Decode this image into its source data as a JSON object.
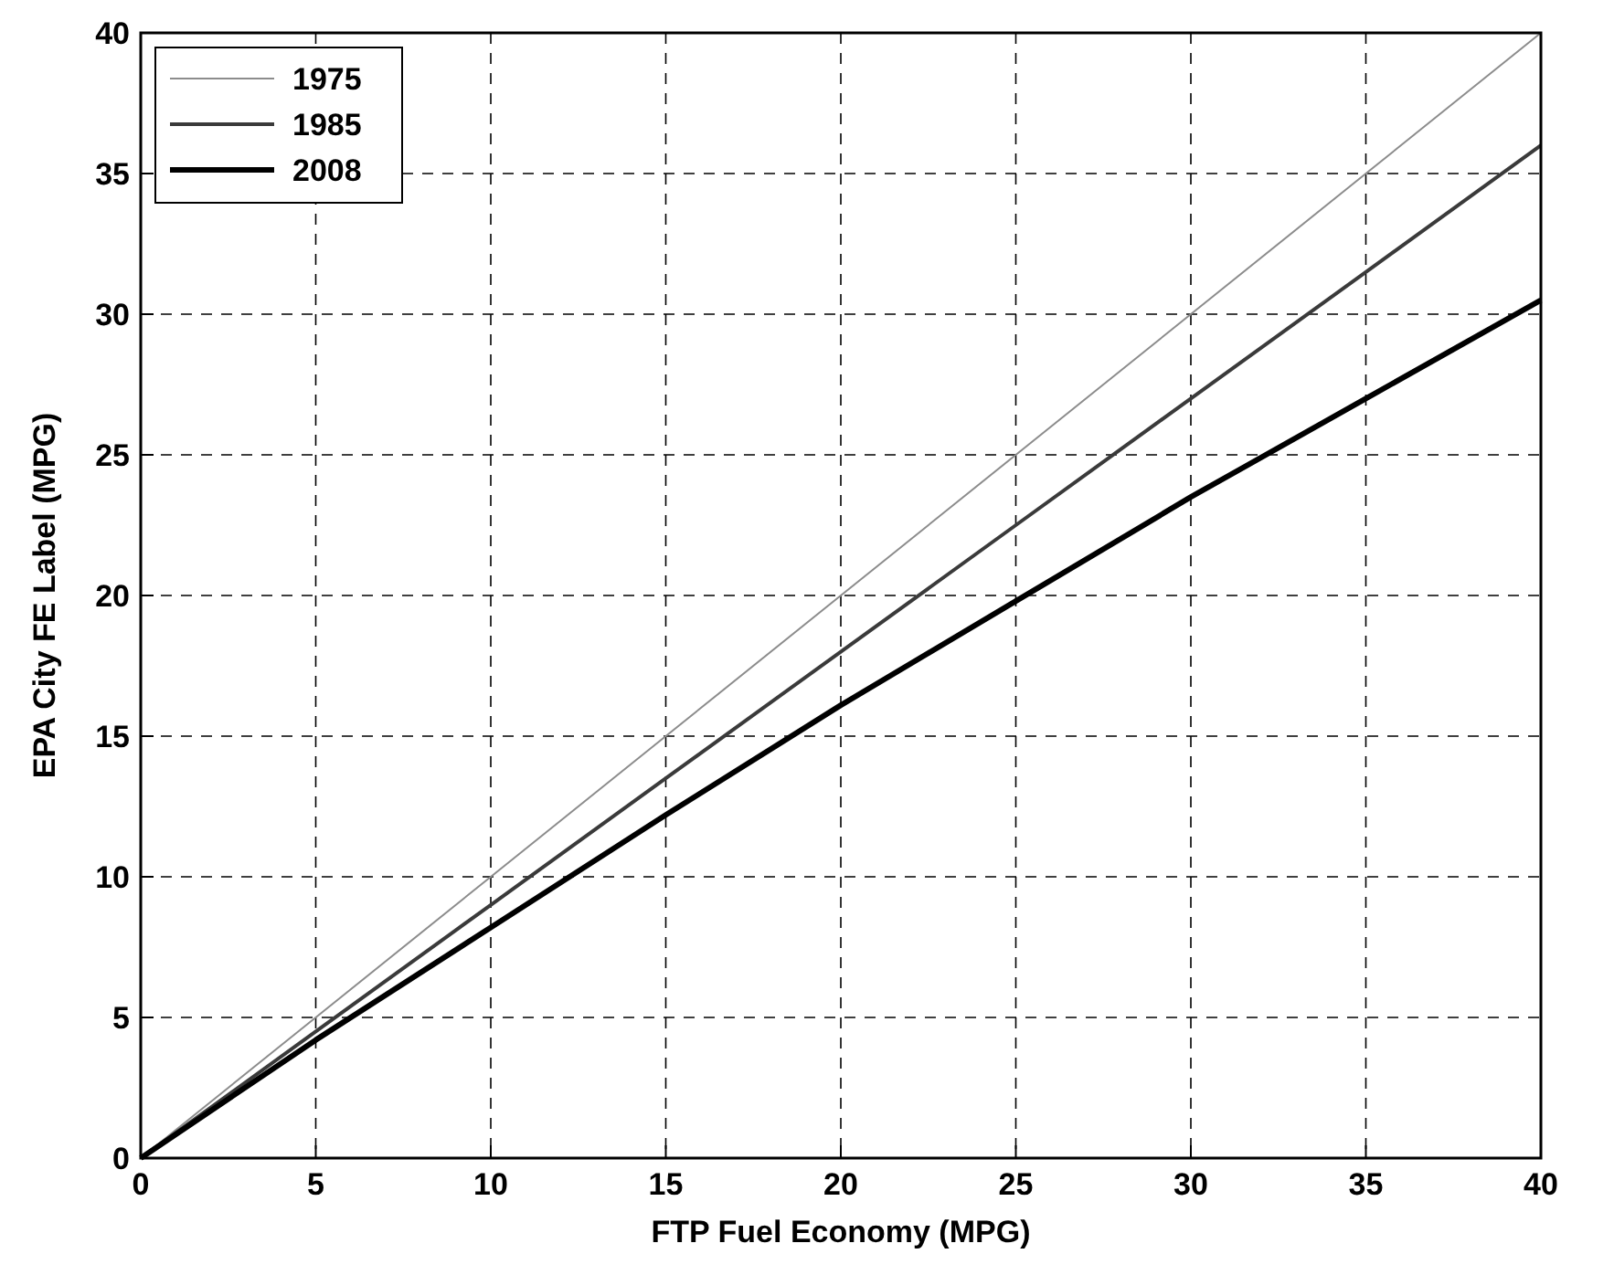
{
  "chart_data": {
    "type": "line",
    "xlabel": "FTP Fuel Economy (MPG)",
    "ylabel": "EPA City FE Label (MPG)",
    "x": [
      0,
      5,
      10,
      15,
      20,
      25,
      30,
      35,
      40
    ],
    "series": [
      {
        "name": "1975",
        "color": "#8c8c8c",
        "values": [
          0,
          5,
          10,
          15,
          20,
          25,
          30,
          35,
          40
        ]
      },
      {
        "name": "1985",
        "color": "#3a3a3a",
        "values": [
          0,
          4.5,
          9,
          13.5,
          18,
          22.5,
          27,
          31.5,
          36
        ]
      },
      {
        "name": "2008",
        "color": "#000000",
        "values": [
          0,
          4.2,
          8.2,
          12.2,
          16.1,
          19.8,
          23.5,
          27,
          30.5
        ]
      }
    ],
    "xlim": [
      0,
      40
    ],
    "xticks": [
      0,
      5,
      10,
      15,
      20,
      25,
      30,
      35,
      40
    ],
    "ylim": [
      0,
      40
    ],
    "yticks": [
      0,
      5,
      10,
      15,
      20,
      25,
      30,
      35,
      40
    ],
    "grid": true,
    "legend": "top left",
    "line_style": "solid"
  }
}
